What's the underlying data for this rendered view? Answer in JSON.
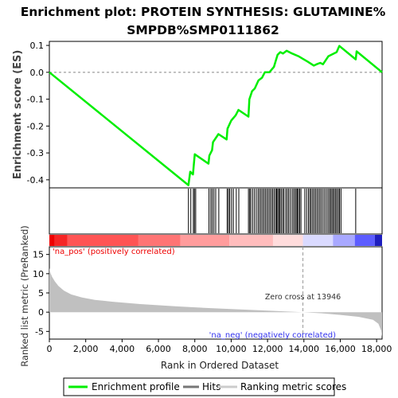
{
  "chart_data": {
    "type": "line",
    "title_line1": "Enrichment plot: PROTEIN SYNTHESIS: GLUTAMINE%",
    "title_line2": "SMPDB%SMP0111862",
    "es_panel": {
      "ylabel": "Enrichment score (ES)",
      "ylim": [
        -0.43,
        0.115
      ],
      "yticks": [
        0.1,
        0.0,
        -0.1,
        -0.2,
        -0.3,
        -0.4
      ],
      "ytick_labels": [
        "0.1",
        "0.0",
        "-0.1",
        "-0.2",
        "-0.3",
        "-0.4"
      ],
      "series": [
        {
          "name": "Enrichment profile",
          "color": "#00ee00",
          "x": [
            0,
            7650,
            7750,
            7900,
            7950,
            8000,
            8750,
            8800,
            8950,
            9000,
            9300,
            9750,
            9800,
            10000,
            10250,
            10400,
            10950,
            11000,
            11150,
            11300,
            11500,
            11700,
            11850,
            12100,
            12350,
            12550,
            12700,
            12850,
            13050,
            13350,
            13700,
            14200,
            14550,
            14700,
            14900,
            15050,
            15350,
            15800,
            15950,
            16850,
            16900,
            18300
          ],
          "y": [
            0.0,
            -0.42,
            -0.37,
            -0.38,
            -0.34,
            -0.305,
            -0.34,
            -0.31,
            -0.29,
            -0.26,
            -0.23,
            -0.25,
            -0.21,
            -0.18,
            -0.16,
            -0.14,
            -0.165,
            -0.1,
            -0.07,
            -0.06,
            -0.03,
            -0.02,
            0.0,
            0.0,
            0.02,
            0.065,
            0.075,
            0.07,
            0.08,
            0.07,
            0.06,
            0.04,
            0.025,
            0.03,
            0.035,
            0.03,
            0.06,
            0.075,
            0.098,
            0.048,
            0.078,
            0.0
          ]
        }
      ]
    },
    "hits_panel": {
      "hit_ranks": [
        7650,
        7780,
        7920,
        7980,
        8050,
        8780,
        8880,
        8960,
        9050,
        9150,
        9320,
        9780,
        9850,
        9920,
        10020,
        10120,
        10280,
        10420,
        10950,
        11020,
        11080,
        11180,
        11280,
        11380,
        11480,
        11560,
        11640,
        11720,
        11800,
        11880,
        11960,
        12040,
        12120,
        12200,
        12280,
        12360,
        12440,
        12500,
        12560,
        12620,
        12680,
        12750,
        12830,
        12900,
        13000,
        13080,
        13160,
        13250,
        13350,
        13430,
        13510,
        13580,
        13640,
        13700,
        13770,
        13840,
        14050,
        14150,
        14250,
        14330,
        14400,
        14480,
        14560,
        14640,
        14720,
        14800,
        14880,
        14960,
        15050,
        15140,
        15230,
        15320,
        15400,
        15470,
        15540,
        15610,
        15680,
        15750,
        15820,
        15900,
        15960,
        16040,
        16850
      ]
    },
    "ranked_metric_panel": {
      "ylabel": "Ranked list metric (PreRanked)",
      "ylim": [
        -7,
        17
      ],
      "yticks": [
        15,
        10,
        5,
        0,
        -5
      ],
      "ytick_labels": [
        "15",
        "10",
        "5",
        "0",
        "-5"
      ],
      "fill_color": "#c0c0c0",
      "profile_x": [
        0,
        60,
        150,
        300,
        500,
        800,
        1200,
        1800,
        2500,
        3500,
        5000,
        7000,
        9000,
        11000,
        12500,
        13946,
        15000,
        16000,
        17000,
        17800,
        18100,
        18250,
        18300
      ],
      "profile_y": [
        11.5,
        10.2,
        9.2,
        8.0,
        6.8,
        5.6,
        4.6,
        3.8,
        3.2,
        2.7,
        2.1,
        1.5,
        1.0,
        0.6,
        0.3,
        0.0,
        -0.3,
        -0.7,
        -1.2,
        -2.0,
        -3.0,
        -4.8,
        -6.5
      ],
      "zero_cross_label": "Zero cross at 13946",
      "zero_cross_rank": 13946,
      "pos_label": "'na_pos' (positively correlated)",
      "neg_label": "'na_neg' (negatively correlated)",
      "pos_color": "#ff0000",
      "neg_color": "#3333ff"
    },
    "xlabel": "Rank in Ordered Dataset",
    "xlim": [
      0,
      18300
    ],
    "xticks": [
      0,
      2000,
      4000,
      6000,
      8000,
      10000,
      12000,
      14000,
      16000,
      18000
    ],
    "xtick_labels": [
      "0",
      "2,000",
      "4,000",
      "6,000",
      "8,000",
      "10,000",
      "12,000",
      "14,000",
      "16,000",
      "18,000"
    ],
    "color_bar_segments": [
      {
        "x0": 0,
        "x1": 300,
        "color": "#ee0000"
      },
      {
        "x0": 300,
        "x1": 1000,
        "color": "#f52525"
      },
      {
        "x0": 1000,
        "x1": 4900,
        "color": "#ff5454"
      },
      {
        "x0": 4900,
        "x1": 7200,
        "color": "#ff7474"
      },
      {
        "x0": 7200,
        "x1": 9900,
        "color": "#ff9c9c"
      },
      {
        "x0": 9900,
        "x1": 12300,
        "color": "#ffbcbc"
      },
      {
        "x0": 12300,
        "x1": 13946,
        "color": "#ffdcdc"
      },
      {
        "x0": 13946,
        "x1": 15600,
        "color": "#dadaff"
      },
      {
        "x0": 15600,
        "x1": 16800,
        "color": "#a8a8ff"
      },
      {
        "x0": 16800,
        "x1": 17900,
        "color": "#5c5cff"
      },
      {
        "x0": 17900,
        "x1": 18300,
        "color": "#1e1ebe"
      }
    ],
    "legend": {
      "placement": "bottom",
      "items": [
        {
          "label": "Enrichment profile",
          "color": "#00ee00",
          "kind": "line"
        },
        {
          "label": "Hits",
          "color": "#777777",
          "kind": "line"
        },
        {
          "label": "Ranking metric scores",
          "color": "#cccccc",
          "kind": "line"
        }
      ]
    }
  }
}
